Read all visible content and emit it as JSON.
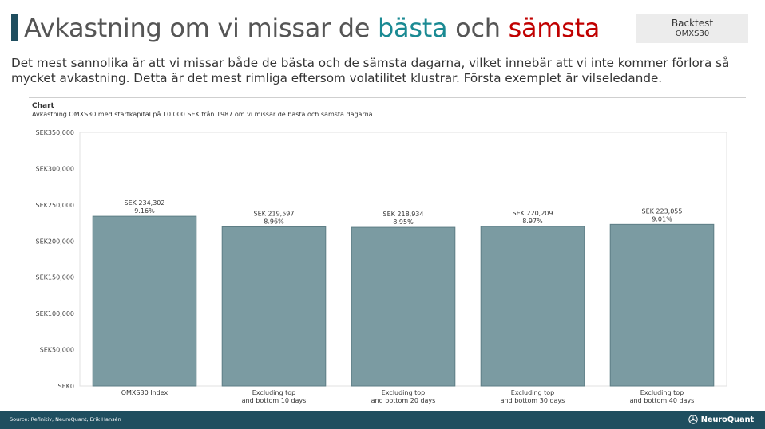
{
  "header": {
    "title_part1": "Avkastning om vi missar de ",
    "title_best": "bästa",
    "title_middle": " och ",
    "title_worst": "sämsta",
    "badge_title": "Backtest",
    "badge_subtitle": "OMXS30",
    "intro": "Det mest sannolika är att vi missar både de bästa och de sämsta dagarna, vilket innebär att vi inte kommer förlora så mycket avkastning. Detta är det mest rimliga eftersom volatilitet klustrar. Första exemplet är vilseledande."
  },
  "chart_header": {
    "kicker": "Chart",
    "subtitle": "Avkastning OMXS30 med startkapital på 10 000 SEK från 1987 om vi missar de bästa och sämsta dagarna."
  },
  "colors": {
    "bar": "#7b9ba2",
    "bar_edge": "#5e7e85",
    "footer": "#1f4e5f",
    "best": "#1a8a93",
    "worst": "#c00000"
  },
  "chart_data": {
    "type": "bar",
    "categories": [
      "OMXS30 Index",
      "Excluding top\nand bottom 10 days",
      "Excluding top\nand bottom 20 days",
      "Excluding top\nand bottom  30 days",
      "Excluding top\nand bottom 40 days"
    ],
    "values": [
      234302,
      219597,
      218934,
      220209,
      223055
    ],
    "value_labels": [
      "SEK 234,302",
      "SEK 219,597",
      "SEK 218,934",
      "SEK 220,209",
      "SEK 223,055"
    ],
    "rate_labels": [
      "9.16%",
      "8.96%",
      "8.95%",
      "8.97%",
      "9.01%"
    ],
    "yticks": [
      0,
      50000,
      100000,
      150000,
      200000,
      250000,
      300000,
      350000
    ],
    "ytick_labels": [
      "SEK0",
      "SEK50,000",
      "SEK100,000",
      "SEK150,000",
      "SEK200,000",
      "SEK250,000",
      "SEK300,000",
      "SEK350,000"
    ],
    "ylim": [
      0,
      350000
    ],
    "grid": false
  },
  "footer": {
    "source": "Source: Refinitiv, NeuroQuant, Erik Hansén",
    "logo_text": "NeuroQuant",
    "logo_icon": "neural-network-icon"
  }
}
